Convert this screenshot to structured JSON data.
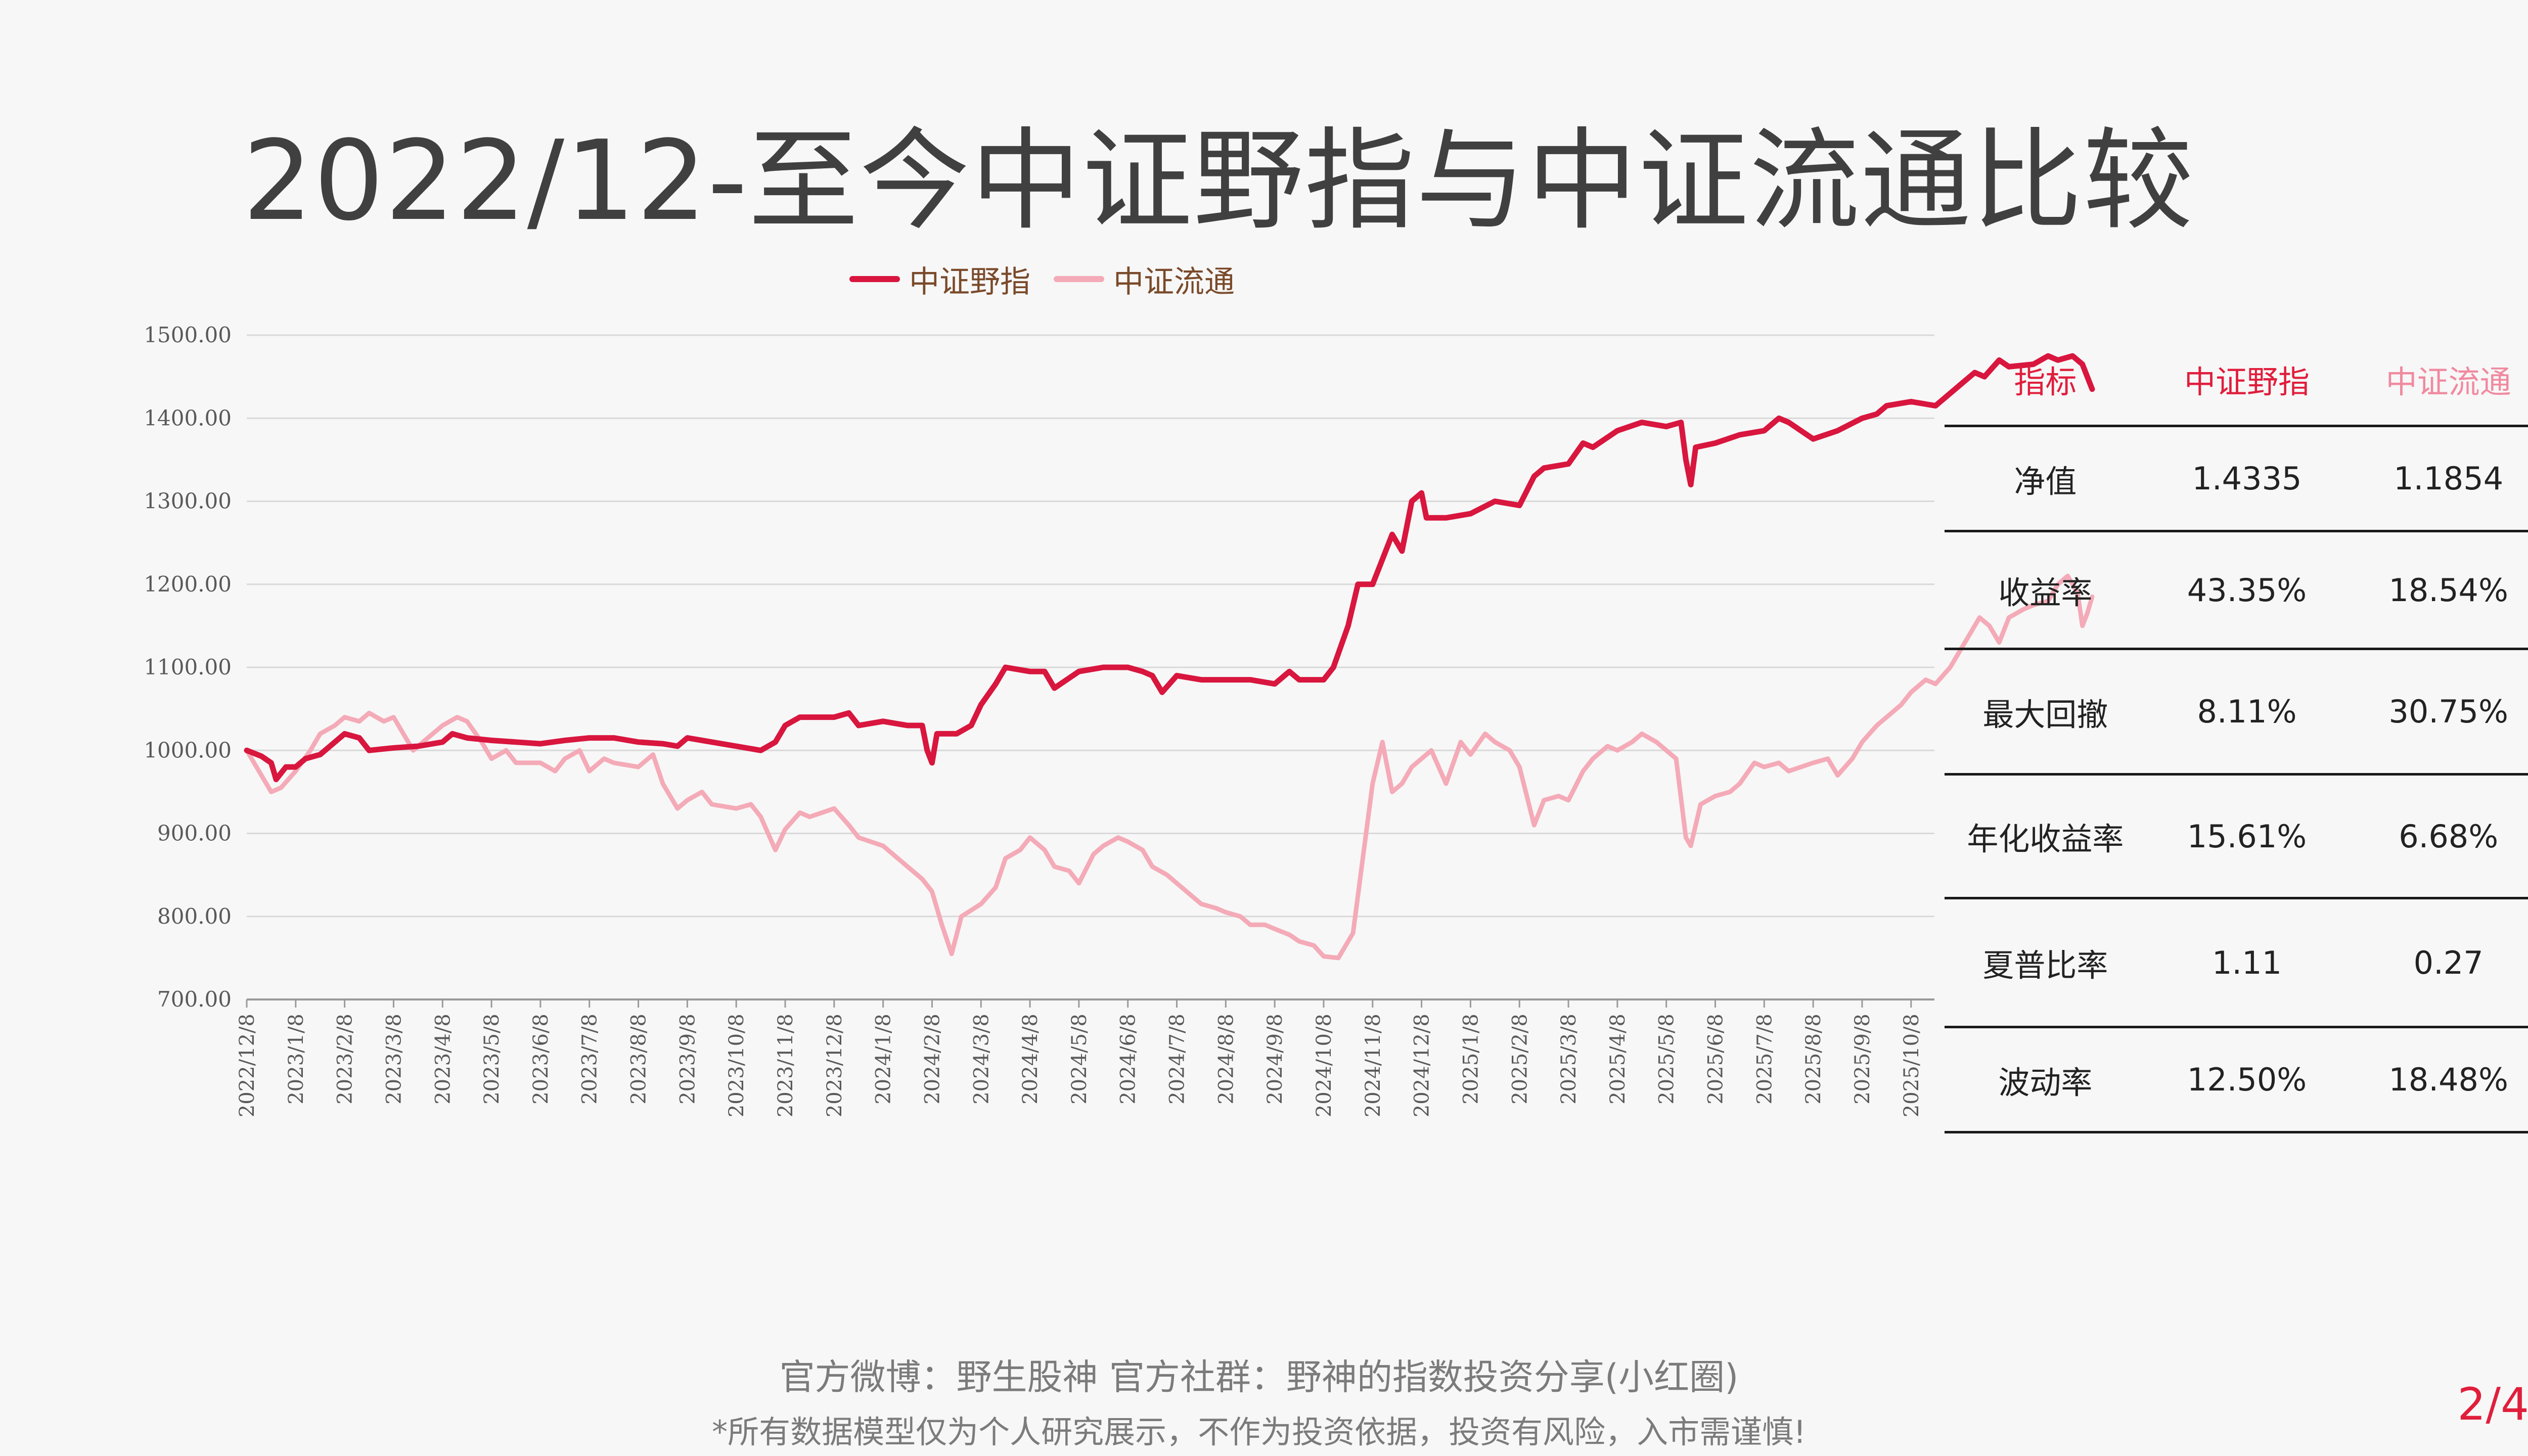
{
  "title": "2022/12-至今中证野指与中证流通比较",
  "legend": [
    {
      "name": "中证野指",
      "color": "#d8163e"
    },
    {
      "name": "中证流通",
      "color": "#f4aab7"
    }
  ],
  "chart_data": {
    "type": "line",
    "ylim": [
      700,
      1500
    ],
    "yticks": [
      "700.00",
      "800.00",
      "900.00",
      "1000.00",
      "1100.00",
      "1200.00",
      "1300.00",
      "1400.00",
      "1500.00"
    ],
    "xticks": [
      "2022/12/8",
      "2023/1/8",
      "2023/2/8",
      "2023/3/8",
      "2023/4/8",
      "2023/5/8",
      "2023/6/8",
      "2023/7/8",
      "2023/8/8",
      "2023/9/8",
      "2023/10/8",
      "2023/11/8",
      "2023/12/8",
      "2024/1/8",
      "2024/2/8",
      "2024/3/8",
      "2024/4/8",
      "2024/5/8",
      "2024/6/8",
      "2024/7/8",
      "2024/8/8",
      "2024/9/8",
      "2024/10/8",
      "2024/11/8",
      "2024/12/8",
      "2025/1/8",
      "2025/2/8",
      "2025/3/8",
      "2025/4/8",
      "2025/5/8",
      "2025/6/8",
      "2025/7/8",
      "2025/8/8",
      "2025/9/8",
      "2025/10/8"
    ],
    "legend_position": "top-center",
    "grid": true,
    "series": [
      {
        "name": "中证野指",
        "color": "#d8163e",
        "points": [
          [
            0,
            1000
          ],
          [
            0.3,
            993
          ],
          [
            0.5,
            985
          ],
          [
            0.6,
            965
          ],
          [
            0.8,
            980
          ],
          [
            1,
            980
          ],
          [
            1.2,
            990
          ],
          [
            1.5,
            995
          ],
          [
            1.8,
            1010
          ],
          [
            2,
            1020
          ],
          [
            2.3,
            1015
          ],
          [
            2.5,
            1000
          ],
          [
            3,
            1003
          ],
          [
            3.5,
            1005
          ],
          [
            4,
            1010
          ],
          [
            4.2,
            1020
          ],
          [
            4.5,
            1015
          ],
          [
            5,
            1012
          ],
          [
            5.5,
            1010
          ],
          [
            6,
            1008
          ],
          [
            6.5,
            1012
          ],
          [
            7,
            1015
          ],
          [
            7.5,
            1015
          ],
          [
            8,
            1010
          ],
          [
            8.5,
            1008
          ],
          [
            8.8,
            1005
          ],
          [
            9,
            1015
          ],
          [
            9.5,
            1010
          ],
          [
            10,
            1005
          ],
          [
            10.5,
            1000
          ],
          [
            10.8,
            1010
          ],
          [
            11,
            1030
          ],
          [
            11.3,
            1040
          ],
          [
            12,
            1040
          ],
          [
            12.3,
            1045
          ],
          [
            12.5,
            1030
          ],
          [
            13,
            1035
          ],
          [
            13.5,
            1030
          ],
          [
            13.8,
            1030
          ],
          [
            13.9,
            1000
          ],
          [
            14,
            985
          ],
          [
            14.1,
            1020
          ],
          [
            14.5,
            1020
          ],
          [
            14.8,
            1030
          ],
          [
            15,
            1055
          ],
          [
            15.3,
            1080
          ],
          [
            15.5,
            1100
          ],
          [
            16,
            1095
          ],
          [
            16.3,
            1095
          ],
          [
            16.5,
            1075
          ],
          [
            17,
            1095
          ],
          [
            17.5,
            1100
          ],
          [
            18,
            1100
          ],
          [
            18.3,
            1095
          ],
          [
            18.5,
            1090
          ],
          [
            18.7,
            1070
          ],
          [
            19,
            1090
          ],
          [
            19.5,
            1085
          ],
          [
            20,
            1085
          ],
          [
            20.5,
            1085
          ],
          [
            21,
            1080
          ],
          [
            21.3,
            1095
          ],
          [
            21.5,
            1085
          ],
          [
            22,
            1085
          ],
          [
            22.2,
            1100
          ],
          [
            22.5,
            1150
          ],
          [
            22.7,
            1200
          ],
          [
            23,
            1200
          ],
          [
            23.2,
            1230
          ],
          [
            23.4,
            1260
          ],
          [
            23.6,
            1240
          ],
          [
            23.8,
            1300
          ],
          [
            24,
            1310
          ],
          [
            24.1,
            1280
          ],
          [
            24.5,
            1280
          ],
          [
            25,
            1285
          ],
          [
            25.5,
            1300
          ],
          [
            26,
            1295
          ],
          [
            26.3,
            1330
          ],
          [
            26.5,
            1340
          ],
          [
            27,
            1345
          ],
          [
            27.3,
            1370
          ],
          [
            27.5,
            1365
          ],
          [
            28,
            1385
          ],
          [
            28.5,
            1395
          ],
          [
            29,
            1390
          ],
          [
            29.3,
            1395
          ],
          [
            29.4,
            1350
          ],
          [
            29.5,
            1320
          ],
          [
            29.6,
            1365
          ],
          [
            30,
            1370
          ],
          [
            30.5,
            1380
          ],
          [
            31,
            1385
          ],
          [
            31.3,
            1400
          ],
          [
            31.5,
            1395
          ],
          [
            32,
            1375
          ],
          [
            32.5,
            1385
          ],
          [
            33,
            1400
          ],
          [
            33.3,
            1405
          ],
          [
            33.5,
            1415
          ],
          [
            34,
            1420
          ],
          [
            34.5,
            1415
          ],
          [
            35,
            1440
          ],
          [
            35.3,
            1455
          ],
          [
            35.5,
            1450
          ],
          [
            35.8,
            1470
          ],
          [
            36,
            1462
          ],
          [
            36.5,
            1465
          ],
          [
            36.8,
            1475
          ],
          [
            37,
            1470
          ],
          [
            37.3,
            1475
          ],
          [
            37.5,
            1465
          ],
          [
            37.6,
            1450
          ],
          [
            37.7,
            1435
          ]
        ]
      },
      {
        "name": "中证流通",
        "color": "#f4aab7",
        "points": [
          [
            0,
            1000
          ],
          [
            0.3,
            970
          ],
          [
            0.5,
            950
          ],
          [
            0.7,
            955
          ],
          [
            1,
            975
          ],
          [
            1.3,
            1000
          ],
          [
            1.5,
            1020
          ],
          [
            1.8,
            1030
          ],
          [
            2,
            1040
          ],
          [
            2.3,
            1035
          ],
          [
            2.5,
            1045
          ],
          [
            2.8,
            1035
          ],
          [
            3,
            1040
          ],
          [
            3.2,
            1020
          ],
          [
            3.4,
            1000
          ],
          [
            3.6,
            1010
          ],
          [
            4,
            1030
          ],
          [
            4.3,
            1040
          ],
          [
            4.5,
            1035
          ],
          [
            4.8,
            1010
          ],
          [
            5,
            990
          ],
          [
            5.3,
            1000
          ],
          [
            5.5,
            985
          ],
          [
            6,
            985
          ],
          [
            6.3,
            975
          ],
          [
            6.5,
            990
          ],
          [
            6.8,
            1000
          ],
          [
            7,
            975
          ],
          [
            7.3,
            990
          ],
          [
            7.5,
            985
          ],
          [
            8,
            980
          ],
          [
            8.3,
            995
          ],
          [
            8.5,
            960
          ],
          [
            8.8,
            930
          ],
          [
            9,
            940
          ],
          [
            9.3,
            950
          ],
          [
            9.5,
            935
          ],
          [
            10,
            930
          ],
          [
            10.3,
            935
          ],
          [
            10.5,
            920
          ],
          [
            10.8,
            880
          ],
          [
            11,
            905
          ],
          [
            11.3,
            925
          ],
          [
            11.5,
            920
          ],
          [
            12,
            930
          ],
          [
            12.3,
            910
          ],
          [
            12.5,
            895
          ],
          [
            13,
            885
          ],
          [
            13.3,
            870
          ],
          [
            13.5,
            860
          ],
          [
            13.8,
            845
          ],
          [
            14,
            830
          ],
          [
            14.2,
            790
          ],
          [
            14.4,
            755
          ],
          [
            14.6,
            800
          ],
          [
            15,
            815
          ],
          [
            15.3,
            835
          ],
          [
            15.5,
            870
          ],
          [
            15.8,
            880
          ],
          [
            16,
            895
          ],
          [
            16.3,
            880
          ],
          [
            16.5,
            860
          ],
          [
            16.8,
            855
          ],
          [
            17,
            840
          ],
          [
            17.3,
            875
          ],
          [
            17.5,
            885
          ],
          [
            17.8,
            895
          ],
          [
            18,
            890
          ],
          [
            18.3,
            880
          ],
          [
            18.5,
            860
          ],
          [
            18.8,
            850
          ],
          [
            19,
            840
          ],
          [
            19.3,
            825
          ],
          [
            19.5,
            815
          ],
          [
            19.8,
            810
          ],
          [
            20,
            805
          ],
          [
            20.3,
            800
          ],
          [
            20.5,
            790
          ],
          [
            20.8,
            790
          ],
          [
            21,
            785
          ],
          [
            21.3,
            778
          ],
          [
            21.5,
            770
          ],
          [
            21.8,
            765
          ],
          [
            22,
            752
          ],
          [
            22.3,
            750
          ],
          [
            22.6,
            780
          ],
          [
            22.8,
            870
          ],
          [
            23,
            960
          ],
          [
            23.2,
            1010
          ],
          [
            23.4,
            950
          ],
          [
            23.6,
            960
          ],
          [
            23.8,
            980
          ],
          [
            24,
            990
          ],
          [
            24.2,
            1000
          ],
          [
            24.5,
            960
          ],
          [
            24.8,
            1010
          ],
          [
            25,
            995
          ],
          [
            25.3,
            1020
          ],
          [
            25.5,
            1010
          ],
          [
            25.8,
            1000
          ],
          [
            26,
            980
          ],
          [
            26.3,
            910
          ],
          [
            26.5,
            940
          ],
          [
            26.8,
            945
          ],
          [
            27,
            940
          ],
          [
            27.3,
            975
          ],
          [
            27.5,
            990
          ],
          [
            27.8,
            1005
          ],
          [
            28,
            1000
          ],
          [
            28.3,
            1010
          ],
          [
            28.5,
            1020
          ],
          [
            28.8,
            1010
          ],
          [
            29,
            1000
          ],
          [
            29.2,
            990
          ],
          [
            29.4,
            895
          ],
          [
            29.5,
            885
          ],
          [
            29.7,
            935
          ],
          [
            30,
            945
          ],
          [
            30.3,
            950
          ],
          [
            30.5,
            960
          ],
          [
            30.8,
            985
          ],
          [
            31,
            980
          ],
          [
            31.3,
            985
          ],
          [
            31.5,
            975
          ],
          [
            32,
            985
          ],
          [
            32.3,
            990
          ],
          [
            32.5,
            970
          ],
          [
            32.8,
            990
          ],
          [
            33,
            1010
          ],
          [
            33.3,
            1030
          ],
          [
            33.5,
            1040
          ],
          [
            33.8,
            1055
          ],
          [
            34,
            1070
          ],
          [
            34.3,
            1085
          ],
          [
            34.5,
            1080
          ],
          [
            34.8,
            1100
          ],
          [
            35,
            1120
          ],
          [
            35.2,
            1140
          ],
          [
            35.4,
            1160
          ],
          [
            35.6,
            1150
          ],
          [
            35.8,
            1130
          ],
          [
            36,
            1160
          ],
          [
            36.3,
            1170
          ],
          [
            36.5,
            1175
          ],
          [
            36.8,
            1180
          ],
          [
            37,
            1200
          ],
          [
            37.2,
            1210
          ],
          [
            37.4,
            1190
          ],
          [
            37.5,
            1150
          ],
          [
            37.6,
            1165
          ],
          [
            37.7,
            1185
          ]
        ]
      }
    ]
  },
  "table": {
    "headers": [
      "指标",
      "中证野指",
      "中证流通"
    ],
    "header_colors": [
      "#e01e3c",
      "#e01e3c",
      "#f08aa0"
    ],
    "rows": [
      {
        "label": "净值",
        "a": "1.4335",
        "b": "1.1854"
      },
      {
        "label": "收益率",
        "a": "43.35%",
        "b": "18.54%"
      },
      {
        "label": "最大回撤",
        "a": "8.11%",
        "b": "30.75%"
      },
      {
        "label": "年化收益率",
        "a": "15.61%",
        "b": "6.68%"
      },
      {
        "label": "夏普比率",
        "a": "1.11",
        "b": "0.27"
      },
      {
        "label": "波动率",
        "a": "12.50%",
        "b": "18.48%"
      }
    ]
  },
  "footer": {
    "line1": "官方微博：野生股神  官方社群：野神的指数投资分享(小红圈)",
    "line2": "*所有数据模型仅为个人研究展示，不作为投资依据，投资有风险，入市需谨慎!",
    "page": "2/4"
  }
}
